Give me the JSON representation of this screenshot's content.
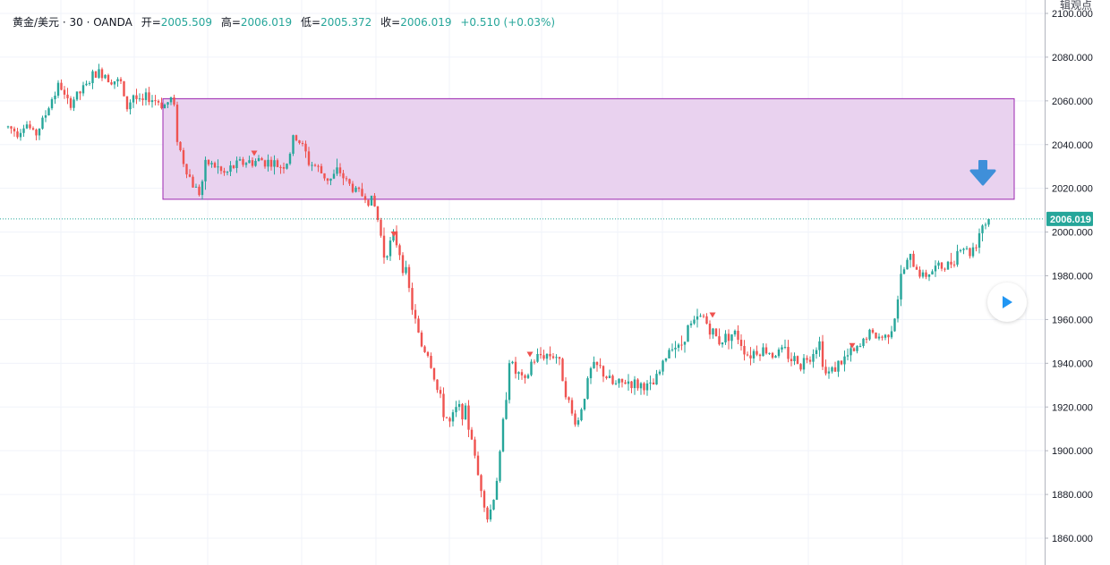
{
  "legend": {
    "symbol": "黄金/美元 · 30 · OANDA",
    "open_label": "开=",
    "open": "2005.509",
    "high_label": "高=",
    "high": "2006.019",
    "low_label": "低=",
    "low": "2005.372",
    "close_label": "收=",
    "close": "2006.019",
    "change": "+0.510 (+0.03%)"
  },
  "top_right_text": "辑观点",
  "colors": {
    "up": "#26a69a",
    "down": "#ef5350",
    "zone_fill": "#e9d2ef",
    "zone_border": "#9c27b0",
    "arrow": "#3f8fd9",
    "price_line": "#26a69a",
    "grid": "#f0f3fa"
  },
  "icons": {
    "down_arrow": "down-arrow-icon",
    "play": "play-icon"
  },
  "chart_data": {
    "type": "candlestick",
    "title": "",
    "xlabel": "",
    "ylabel": "",
    "ylim": [
      1852,
      2104
    ],
    "y_ticks": [
      "2100.000",
      "2080.000",
      "2060.000",
      "2040.000",
      "2020.000",
      "2000.000",
      "1980.000",
      "1960.000",
      "1940.000",
      "1920.000",
      "1900.000",
      "1880.000",
      "1860.000"
    ],
    "current_price": "2006.019",
    "grid": true,
    "zone": {
      "top": 2061,
      "bottom": 2015
    },
    "path": [
      [
        0,
        2048
      ],
      [
        10,
        2046
      ],
      [
        20,
        2050
      ],
      [
        30,
        2044
      ],
      [
        40,
        2052
      ],
      [
        50,
        2062
      ],
      [
        58,
        2068
      ],
      [
        66,
        2058
      ],
      [
        76,
        2062
      ],
      [
        86,
        2066
      ],
      [
        96,
        2072
      ],
      [
        106,
        2073
      ],
      [
        116,
        2070
      ],
      [
        126,
        2068
      ],
      [
        132,
        2056
      ],
      [
        140,
        2063
      ],
      [
        148,
        2058
      ],
      [
        156,
        2062
      ],
      [
        166,
        2060
      ],
      [
        176,
        2058
      ],
      [
        184,
        2062
      ],
      [
        190,
        2040
      ],
      [
        198,
        2030
      ],
      [
        206,
        2022
      ],
      [
        214,
        2018
      ],
      [
        222,
        2032
      ],
      [
        232,
        2030
      ],
      [
        242,
        2026
      ],
      [
        252,
        2030
      ],
      [
        262,
        2032
      ],
      [
        272,
        2032
      ],
      [
        282,
        2033
      ],
      [
        292,
        2032
      ],
      [
        302,
        2030
      ],
      [
        312,
        2032
      ],
      [
        320,
        2044
      ],
      [
        328,
        2040
      ],
      [
        336,
        2032
      ],
      [
        344,
        2030
      ],
      [
        352,
        2026
      ],
      [
        360,
        2024
      ],
      [
        370,
        2028
      ],
      [
        380,
        2022
      ],
      [
        392,
        2018
      ],
      [
        400,
        2016
      ],
      [
        408,
        2014
      ],
      [
        414,
        2004
      ],
      [
        420,
        1990
      ],
      [
        426,
        1994
      ],
      [
        432,
        1998
      ],
      [
        438,
        1990
      ],
      [
        446,
        1978
      ],
      [
        454,
        1960
      ],
      [
        462,
        1948
      ],
      [
        470,
        1944
      ],
      [
        478,
        1930
      ],
      [
        486,
        1918
      ],
      [
        494,
        1912
      ],
      [
        502,
        1920
      ],
      [
        510,
        1918
      ],
      [
        518,
        1906
      ],
      [
        524,
        1890
      ],
      [
        530,
        1882
      ],
      [
        536,
        1868
      ],
      [
        542,
        1878
      ],
      [
        548,
        1892
      ],
      [
        554,
        1916
      ],
      [
        560,
        1942
      ],
      [
        566,
        1936
      ],
      [
        572,
        1934
      ],
      [
        578,
        1930
      ],
      [
        584,
        1940
      ],
      [
        590,
        1942
      ],
      [
        596,
        1944
      ],
      [
        604,
        1944
      ],
      [
        612,
        1944
      ],
      [
        620,
        1934
      ],
      [
        628,
        1918
      ],
      [
        636,
        1912
      ],
      [
        644,
        1926
      ],
      [
        652,
        1938
      ],
      [
        660,
        1938
      ],
      [
        668,
        1934
      ],
      [
        676,
        1930
      ],
      [
        684,
        1930
      ],
      [
        692,
        1932
      ],
      [
        700,
        1930
      ],
      [
        710,
        1930
      ],
      [
        718,
        1928
      ],
      [
        726,
        1934
      ],
      [
        734,
        1942
      ],
      [
        742,
        1950
      ],
      [
        750,
        1946
      ],
      [
        758,
        1956
      ],
      [
        766,
        1958
      ],
      [
        776,
        1962
      ],
      [
        786,
        1954
      ],
      [
        796,
        1950
      ],
      [
        806,
        1954
      ],
      [
        816,
        1952
      ],
      [
        826,
        1944
      ],
      [
        836,
        1946
      ],
      [
        846,
        1946
      ],
      [
        856,
        1944
      ],
      [
        866,
        1946
      ],
      [
        876,
        1942
      ],
      [
        886,
        1940
      ],
      [
        896,
        1944
      ],
      [
        906,
        1950
      ],
      [
        914,
        1934
      ],
      [
        922,
        1938
      ],
      [
        930,
        1940
      ],
      [
        940,
        1944
      ],
      [
        950,
        1946
      ],
      [
        960,
        1954
      ],
      [
        970,
        1952
      ],
      [
        980,
        1952
      ],
      [
        990,
        1960
      ],
      [
        998,
        1980
      ],
      [
        1006,
        1988
      ],
      [
        1014,
        1984
      ],
      [
        1022,
        1980
      ],
      [
        1030,
        1982
      ],
      [
        1040,
        1984
      ],
      [
        1050,
        1984
      ],
      [
        1058,
        1990
      ],
      [
        1066,
        1994
      ],
      [
        1074,
        1990
      ],
      [
        1082,
        1996
      ],
      [
        1088,
        2004
      ],
      [
        1094,
        2004
      ],
      [
        1098,
        2006
      ]
    ],
    "markers": [
      {
        "x": 276,
        "price": 2036,
        "dir": "down"
      },
      {
        "x": 432,
        "price": 1999,
        "dir": "down"
      },
      {
        "x": 584,
        "price": 1944,
        "dir": "down"
      },
      {
        "x": 788,
        "price": 1962,
        "dir": "down"
      },
      {
        "x": 944,
        "price": 1948,
        "dir": "down"
      }
    ]
  }
}
